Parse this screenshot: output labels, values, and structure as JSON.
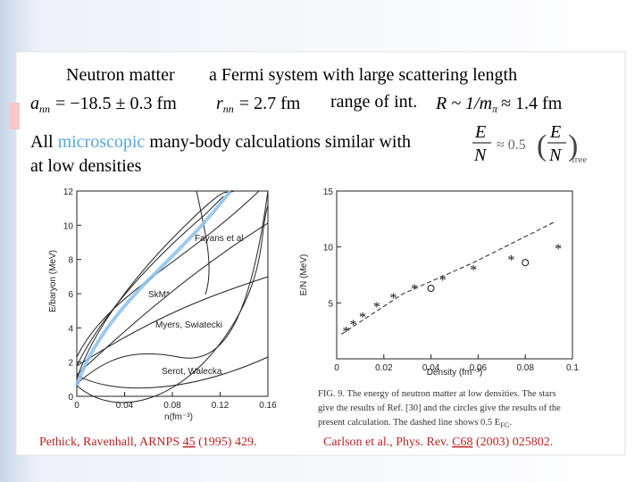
{
  "header": {
    "title_left": "Neutron matter",
    "title_right": "a Fermi system with large scattering length"
  },
  "formulas": {
    "a_sym": "a",
    "a_sub": "nn",
    "a_val": "= −18.5 ± 0.3 fm",
    "r_sym": "r",
    "r_sub": "nn",
    "r_val": "= 2.7 fm",
    "range": "range of int.",
    "R_val": "R ~ 1/m",
    "R_sub": "π",
    "R_end": "≈ 1.4 fm"
  },
  "statement": {
    "all": "All",
    "highlight": "microscopic",
    "rest": "many-body calculations similar with",
    "line2": "at low densities",
    "E": "E",
    "N": "N",
    "approx": "≈ 0.5",
    "free": "free"
  },
  "left_plot": {
    "ylabel": "E/baryon (MeV)",
    "xlabel": "n(fm⁻³)",
    "xlim": [
      0,
      0.16
    ],
    "ylim": [
      0,
      12
    ],
    "xticks": [
      0,
      0.04,
      0.08,
      0.12,
      0.16
    ],
    "yticks": [
      0,
      2,
      4,
      6,
      8,
      10,
      12
    ],
    "curve_labels": [
      "Fayans et al",
      "SkM*",
      "Myers, Swiatecki",
      "Serot, Walecka"
    ]
  },
  "right_plot": {
    "ylabel": "E/N (MeV)",
    "xlabel": "Density (fm⁻³)",
    "xlim": [
      0,
      0.1
    ],
    "ylim": [
      0,
      15
    ],
    "xticks": [
      0,
      0.02,
      0.04,
      0.06,
      0.08,
      0.1
    ],
    "yticks": [
      5,
      10,
      15
    ],
    "stars": {
      "x": [
        0.004,
        0.007,
        0.011,
        0.017,
        0.024,
        0.033,
        0.045,
        0.058,
        0.074,
        0.094
      ],
      "y": [
        2.5,
        3.1,
        3.8,
        4.7,
        5.5,
        6.3,
        7.1,
        8.0,
        8.9,
        9.9
      ]
    },
    "circles": {
      "x": [
        0.04,
        0.08
      ],
      "y": [
        6.3,
        8.6
      ]
    },
    "dashed": {
      "x": [
        0.002,
        0.028,
        0.058,
        0.093
      ],
      "y": [
        2.2,
        5.8,
        8.6,
        12.3
      ]
    }
  },
  "caption": [
    "FIG. 9. The energy of neutron matter at low densities. The stars",
    "give the results of Ref. [30] and the circles give the results of the",
    "present calculation. The dashed line shows 0.5 E",
    "FG",
    "."
  ],
  "references": {
    "left": [
      "Pethick, Ravenhall, ARNPS ",
      "45",
      " (1995) 429."
    ],
    "right": [
      "Carlson et al., Phys. Rev. ",
      "C68",
      " (2003) 025802."
    ]
  }
}
